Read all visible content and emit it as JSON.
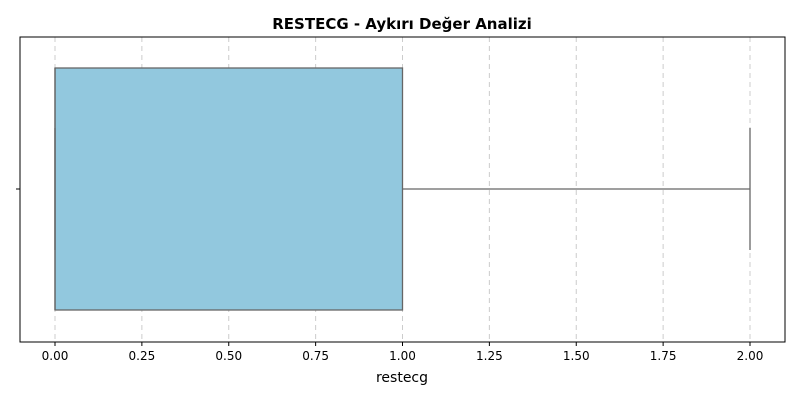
{
  "chart_data": {
    "type": "box",
    "title": "RESTECG - Aykırı Değer Analizi",
    "xlabel": "restecg",
    "ylabel": "",
    "xlim": [
      -0.1,
      2.1
    ],
    "xticks": [
      0.0,
      0.25,
      0.5,
      0.75,
      1.0,
      1.25,
      1.5,
      1.75,
      2.0
    ],
    "xtick_labels": [
      "0.00",
      "0.25",
      "0.50",
      "0.75",
      "1.00",
      "1.25",
      "1.50",
      "1.75",
      "2.00"
    ],
    "orientation": "horizontal",
    "grid": "vertical-dashed",
    "box": {
      "whisker_low": 0.0,
      "q1": 0.0,
      "median": 0.0,
      "q3": 1.0,
      "whisker_high": 2.0,
      "outliers": []
    },
    "colors": {
      "box_fill": "#92c8de",
      "box_edge": "#666666",
      "grid": "#cccccc",
      "axis": "#000000"
    }
  }
}
